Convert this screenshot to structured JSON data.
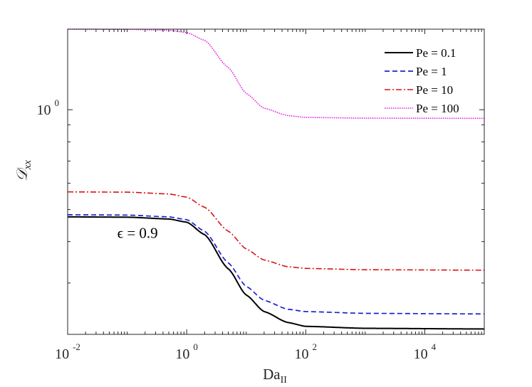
{
  "chart_data": {
    "type": "line",
    "title": "",
    "xlabel": {
      "base": "Da",
      "sub": "II"
    },
    "ylabel": {
      "main": "𝒟",
      "sub": "xx"
    },
    "xscale": "log",
    "yscale": "log",
    "xlim": [
      0.01,
      100000
    ],
    "ylim": [
      0.21,
      1.75
    ],
    "x_ticks": [
      {
        "value": 0.01,
        "base": "10",
        "exp": "-2"
      },
      {
        "value": 1,
        "base": "10",
        "exp": "0"
      },
      {
        "value": 100,
        "base": "10",
        "exp": "2"
      },
      {
        "value": 10000,
        "base": "10",
        "exp": "4"
      }
    ],
    "y_ticks": [
      {
        "value": 1,
        "base": "10",
        "exp": "0"
      }
    ],
    "legend_position": "top-right",
    "annotation": {
      "text": "ϵ = 0.9",
      "x": 0.1,
      "y": 0.41
    },
    "series": [
      {
        "name": "Pe = 0.1",
        "color": "#000000",
        "dash": "solid",
        "x": [
          0.01,
          0.1,
          0.5,
          1,
          2,
          5,
          10,
          20,
          50,
          100,
          1000,
          100000
        ],
        "y": [
          0.475,
          0.474,
          0.468,
          0.458,
          0.42,
          0.331,
          0.276,
          0.246,
          0.228,
          0.222,
          0.219,
          0.218
        ]
      },
      {
        "name": "Pe = 1",
        "color": "#1f1fd6",
        "dash": "dashed",
        "x": [
          0.01,
          0.1,
          0.5,
          1,
          2,
          5,
          10,
          20,
          50,
          100,
          1000,
          100000
        ],
        "y": [
          0.482,
          0.481,
          0.475,
          0.466,
          0.43,
          0.345,
          0.293,
          0.266,
          0.25,
          0.246,
          0.243,
          0.242
        ]
      },
      {
        "name": "Pe = 10",
        "color": "#d81414",
        "dash": "dashdot",
        "x": [
          0.01,
          0.1,
          0.5,
          1,
          2,
          5,
          10,
          20,
          50,
          100,
          1000,
          100000
        ],
        "y": [
          0.565,
          0.564,
          0.557,
          0.545,
          0.508,
          0.43,
          0.38,
          0.352,
          0.336,
          0.332,
          0.329,
          0.328
        ]
      },
      {
        "name": "Pe = 100",
        "color": "#e21be2",
        "dash": "dotted",
        "x": [
          0.01,
          0.1,
          0.5,
          1,
          2,
          5,
          10,
          20,
          50,
          100,
          1000,
          100000
        ],
        "y": [
          1.75,
          1.748,
          1.737,
          1.71,
          1.62,
          1.34,
          1.12,
          1.01,
          0.96,
          0.948,
          0.943,
          0.942
        ]
      }
    ]
  }
}
